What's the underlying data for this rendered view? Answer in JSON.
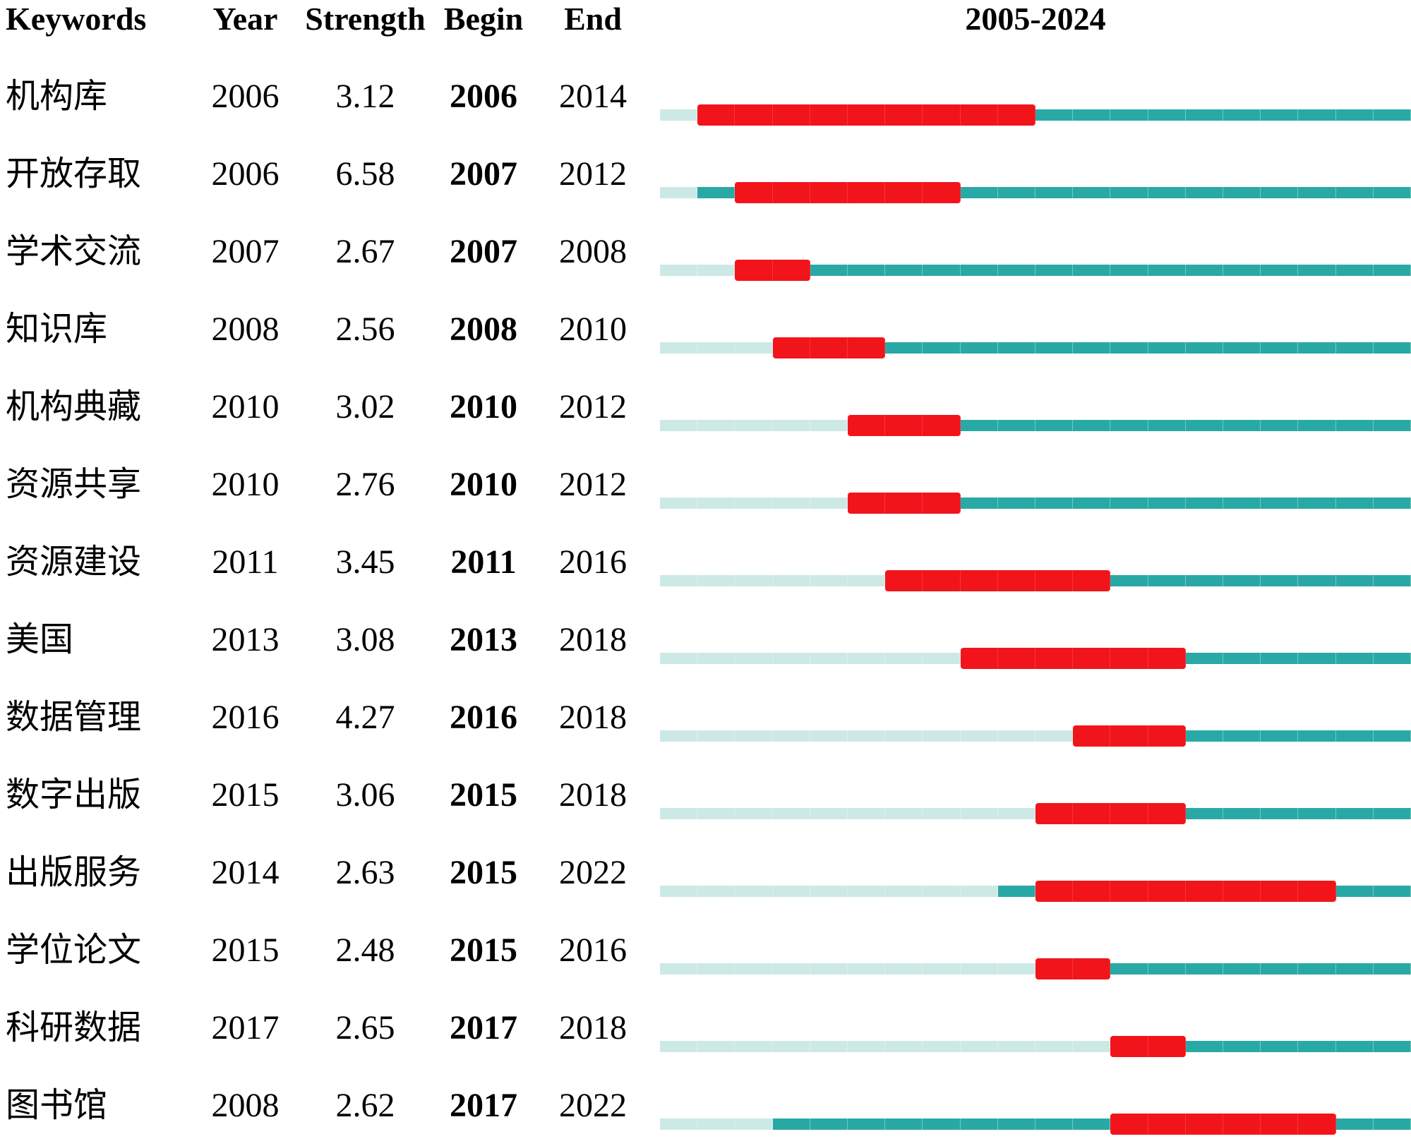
{
  "header": {
    "keywords": "Keywords",
    "year": "Year",
    "strength": "Strength",
    "begin": "Begin",
    "end": "End",
    "range": "2005-2024"
  },
  "timeline": {
    "start_year": 2005,
    "end_year": 2024
  },
  "colors": {
    "pre_appearance": "#CDE9E6",
    "active": "#29A9A6",
    "burst": "#F2141B"
  },
  "rows": [
    {
      "keyword": "机构库",
      "year": "2006",
      "strength": "3.12",
      "begin": "2006",
      "end": "2014"
    },
    {
      "keyword": "开放存取",
      "year": "2006",
      "strength": "6.58",
      "begin": "2007",
      "end": "2012"
    },
    {
      "keyword": "学术交流",
      "year": "2007",
      "strength": "2.67",
      "begin": "2007",
      "end": "2008"
    },
    {
      "keyword": "知识库",
      "year": "2008",
      "strength": "2.56",
      "begin": "2008",
      "end": "2010"
    },
    {
      "keyword": "机构典藏",
      "year": "2010",
      "strength": "3.02",
      "begin": "2010",
      "end": "2012"
    },
    {
      "keyword": "资源共享",
      "year": "2010",
      "strength": "2.76",
      "begin": "2010",
      "end": "2012"
    },
    {
      "keyword": "资源建设",
      "year": "2011",
      "strength": "3.45",
      "begin": "2011",
      "end": "2016"
    },
    {
      "keyword": "美国",
      "year": "2013",
      "strength": "3.08",
      "begin": "2013",
      "end": "2018"
    },
    {
      "keyword": "数据管理",
      "year": "2016",
      "strength": "4.27",
      "begin": "2016",
      "end": "2018"
    },
    {
      "keyword": "数字出版",
      "year": "2015",
      "strength": "3.06",
      "begin": "2015",
      "end": "2018"
    },
    {
      "keyword": "出版服务",
      "year": "2014",
      "strength": "2.63",
      "begin": "2015",
      "end": "2022"
    },
    {
      "keyword": "学位论文",
      "year": "2015",
      "strength": "2.48",
      "begin": "2015",
      "end": "2016"
    },
    {
      "keyword": "科研数据",
      "year": "2017",
      "strength": "2.65",
      "begin": "2017",
      "end": "2018"
    },
    {
      "keyword": "图书馆",
      "year": "2008",
      "strength": "2.62",
      "begin": "2017",
      "end": "2022"
    }
  ],
  "chart_data": {
    "type": "table",
    "title": "2005-2024",
    "columns": [
      "Keywords",
      "Year",
      "Strength",
      "Begin",
      "End"
    ],
    "timeline_range": [
      2005,
      2024
    ],
    "color_encoding": {
      "#CDE9E6": "years before keyword first appears",
      "#29A9A6": "years keyword active (no burst)",
      "#F2141B": "citation burst period (Begin–End)"
    },
    "rows": [
      {
        "keyword": "机构库",
        "year": 2006,
        "strength": 3.12,
        "begin": 2006,
        "end": 2014
      },
      {
        "keyword": "开放存取",
        "year": 2006,
        "strength": 6.58,
        "begin": 2007,
        "end": 2012
      },
      {
        "keyword": "学术交流",
        "year": 2007,
        "strength": 2.67,
        "begin": 2007,
        "end": 2008
      },
      {
        "keyword": "知识库",
        "year": 2008,
        "strength": 2.56,
        "begin": 2008,
        "end": 2010
      },
      {
        "keyword": "机构典藏",
        "year": 2010,
        "strength": 3.02,
        "begin": 2010,
        "end": 2012
      },
      {
        "keyword": "资源共享",
        "year": 2010,
        "strength": 2.76,
        "begin": 2010,
        "end": 2012
      },
      {
        "keyword": "资源建设",
        "year": 2011,
        "strength": 3.45,
        "begin": 2011,
        "end": 2016
      },
      {
        "keyword": "美国",
        "year": 2013,
        "strength": 3.08,
        "begin": 2013,
        "end": 2018
      },
      {
        "keyword": "数据管理",
        "year": 2016,
        "strength": 4.27,
        "begin": 2016,
        "end": 2018
      },
      {
        "keyword": "数字出版",
        "year": 2015,
        "strength": 3.06,
        "begin": 2015,
        "end": 2018
      },
      {
        "keyword": "出版服务",
        "year": 2014,
        "strength": 2.63,
        "begin": 2015,
        "end": 2022
      },
      {
        "keyword": "学位论文",
        "year": 2015,
        "strength": 2.48,
        "begin": 2015,
        "end": 2016
      },
      {
        "keyword": "科研数据",
        "year": 2017,
        "strength": 2.65,
        "begin": 2017,
        "end": 2018
      },
      {
        "keyword": "图书馆",
        "year": 2008,
        "strength": 2.62,
        "begin": 2017,
        "end": 2022
      }
    ]
  }
}
